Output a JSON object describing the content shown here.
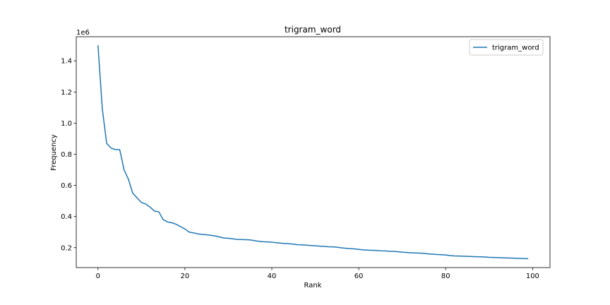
{
  "chart_data": {
    "type": "line",
    "title": "trigram_word",
    "xlabel": "Rank",
    "ylabel": "Frequency",
    "y_offset_label": "1e6",
    "xlim": [
      -5,
      104
    ],
    "ylim": [
      0.072,
      1.555
    ],
    "x_ticks": [
      0,
      20,
      40,
      60,
      80,
      100
    ],
    "x_tick_labels": [
      "0",
      "20",
      "40",
      "60",
      "80",
      "100"
    ],
    "y_ticks": [
      0.2,
      0.4,
      0.6,
      0.8,
      1.0,
      1.2,
      1.4
    ],
    "y_tick_labels": [
      "0.2",
      "0.4",
      "0.6",
      "0.8",
      "1.0",
      "1.2",
      "1.4"
    ],
    "legend": {
      "position": "top-right",
      "entries": [
        "trigram_word"
      ]
    },
    "grid": false,
    "series": [
      {
        "name": "trigram_word",
        "color": "#1f77b4",
        "x": [
          0,
          1,
          2,
          3,
          4,
          5,
          6,
          7,
          8,
          9,
          10,
          11,
          12,
          13,
          14,
          15,
          16,
          17,
          18,
          19,
          20,
          21,
          22,
          23,
          24,
          25,
          26,
          27,
          28,
          29,
          30,
          31,
          32,
          33,
          34,
          35,
          36,
          37,
          38,
          39,
          40,
          41,
          42,
          43,
          44,
          45,
          46,
          47,
          48,
          49,
          50,
          51,
          52,
          53,
          54,
          55,
          56,
          57,
          58,
          59,
          60,
          61,
          62,
          63,
          64,
          65,
          66,
          67,
          68,
          69,
          70,
          71,
          72,
          73,
          74,
          75,
          76,
          77,
          78,
          79,
          80,
          81,
          82,
          83,
          84,
          85,
          86,
          87,
          88,
          89,
          90,
          91,
          92,
          93,
          94,
          95,
          96,
          97,
          98,
          99
        ],
        "values": [
          1.5,
          1.09,
          0.87,
          0.84,
          0.83,
          0.83,
          0.7,
          0.64,
          0.55,
          0.52,
          0.49,
          0.48,
          0.46,
          0.435,
          0.43,
          0.38,
          0.365,
          0.36,
          0.35,
          0.335,
          0.32,
          0.3,
          0.295,
          0.288,
          0.285,
          0.283,
          0.279,
          0.275,
          0.268,
          0.262,
          0.26,
          0.257,
          0.253,
          0.252,
          0.251,
          0.25,
          0.245,
          0.241,
          0.238,
          0.237,
          0.235,
          0.232,
          0.229,
          0.227,
          0.225,
          0.222,
          0.219,
          0.218,
          0.216,
          0.214,
          0.212,
          0.21,
          0.208,
          0.206,
          0.205,
          0.203,
          0.199,
          0.196,
          0.194,
          0.192,
          0.189,
          0.186,
          0.184,
          0.183,
          0.182,
          0.18,
          0.179,
          0.177,
          0.176,
          0.174,
          0.171,
          0.169,
          0.167,
          0.166,
          0.165,
          0.163,
          0.16,
          0.158,
          0.156,
          0.155,
          0.153,
          0.149,
          0.147,
          0.146,
          0.145,
          0.144,
          0.143,
          0.142,
          0.141,
          0.14,
          0.138,
          0.137,
          0.136,
          0.135,
          0.134,
          0.133,
          0.132,
          0.131,
          0.13,
          0.129
        ]
      }
    ]
  }
}
